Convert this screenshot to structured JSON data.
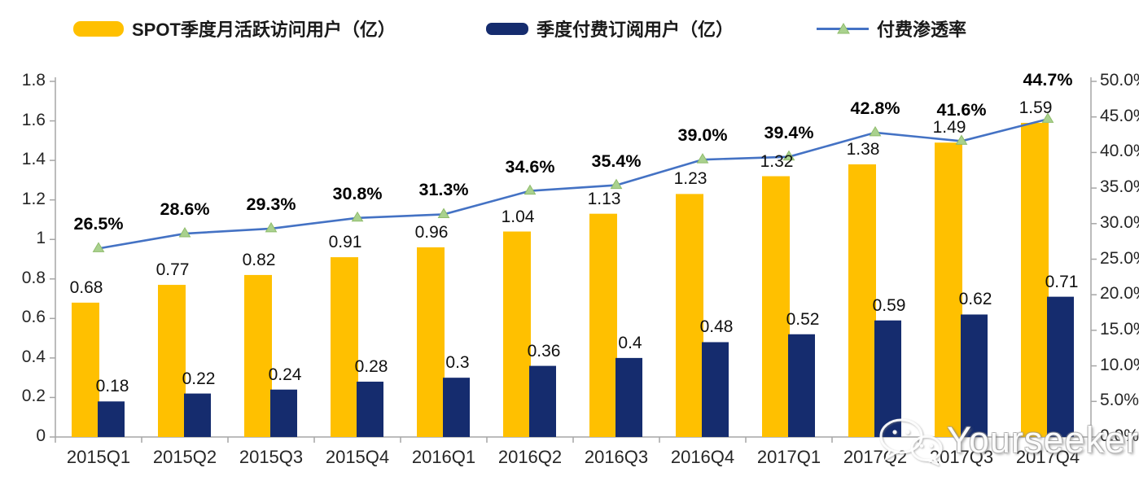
{
  "legend": {
    "items": [
      {
        "label": "SPOT季度月活跃访问用户（亿）",
        "swatch": "yellow-bar"
      },
      {
        "label": "季度付费订阅用户（亿）",
        "swatch": "navy-bar"
      },
      {
        "label": "付费渗透率",
        "swatch": "line-with-triangle-marker"
      }
    ]
  },
  "colors": {
    "mau_bar": "#FFC000",
    "subs_bar": "#152C6E",
    "line": "#4472C4",
    "marker_fill": "#A9D18E",
    "marker_edge": "#8FBC6B",
    "axis": "#A6A6A6"
  },
  "chart_data": {
    "type": "bar",
    "subtype": "combo-bar-line-dual-axis",
    "categories": [
      "2015Q1",
      "2015Q2",
      "2015Q3",
      "2015Q4",
      "2016Q1",
      "2016Q2",
      "2016Q3",
      "2016Q4",
      "2017Q1",
      "2017Q2",
      "2017Q3",
      "2017Q4"
    ],
    "series": [
      {
        "name": "SPOT季度月活跃访问用户（亿）",
        "type": "bar",
        "axis": "left",
        "values": [
          0.68,
          0.77,
          0.82,
          0.91,
          0.96,
          1.04,
          1.13,
          1.23,
          1.32,
          1.38,
          1.49,
          1.59
        ],
        "labels": [
          "0.68",
          "0.77",
          "0.82",
          "0.91",
          "0.96",
          "1.04",
          "1.13",
          "1.23",
          "1.32",
          "1.38",
          "1.49",
          "1.59"
        ]
      },
      {
        "name": "季度付费订阅用户（亿）",
        "type": "bar",
        "axis": "left",
        "values": [
          0.18,
          0.22,
          0.24,
          0.28,
          0.3,
          0.36,
          0.4,
          0.48,
          0.52,
          0.59,
          0.62,
          0.71
        ],
        "labels": [
          "0.18",
          "0.22",
          "0.24",
          "0.28",
          "0.3",
          "0.36",
          "0.4",
          "0.48",
          "0.52",
          "0.59",
          "0.62",
          "0.71"
        ]
      },
      {
        "name": "付费渗透率",
        "type": "line",
        "axis": "right",
        "values": [
          26.5,
          28.6,
          29.3,
          30.8,
          31.3,
          34.6,
          35.4,
          39.0,
          39.4,
          42.8,
          41.6,
          44.7
        ],
        "labels": [
          "26.5%",
          "28.6%",
          "29.3%",
          "30.8%",
          "31.3%",
          "34.6%",
          "35.4%",
          "39.0%",
          "39.4%",
          "42.8%",
          "41.6%",
          "44.7%"
        ]
      }
    ],
    "left_axis": {
      "min": 0,
      "max": 1.8,
      "tick_labels": [
        "0",
        "0.2",
        "0.4",
        "0.6",
        "0.8",
        "1",
        "1.2",
        "1.4",
        "1.6",
        "1.8"
      ]
    },
    "right_axis": {
      "min": 0,
      "max": 50,
      "tick_labels": [
        "0.0%",
        "5.0%",
        "10.0%",
        "15.0%",
        "20.0%",
        "25.0%",
        "30.0%",
        "35.0%",
        "40.0%",
        "45.0%",
        "50.0%"
      ]
    },
    "grid": false,
    "legend_position": "top",
    "title": ""
  },
  "watermark": {
    "text": "Yourseeker",
    "icon": "wechat-icon"
  }
}
